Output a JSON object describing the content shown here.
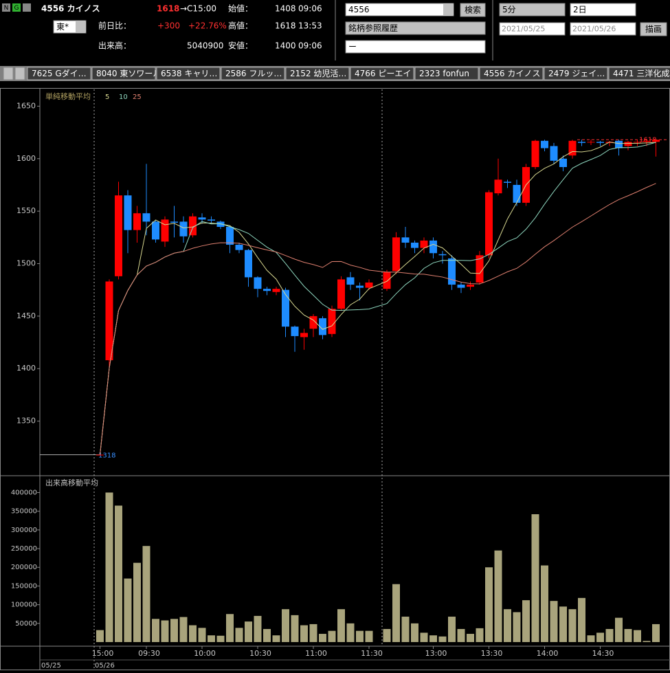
{
  "header": {
    "icons": [
      "N",
      "G"
    ],
    "title": "4556 カイノス",
    "price": "1618",
    "price_time": "→C15:00",
    "market": "東*",
    "change_label": "前日比：",
    "change": "+300",
    "change_pct": "+22.76%",
    "volume_label": "出来高：",
    "volume": "5040900",
    "open_label": "始値：",
    "open": "1408",
    "open_time": "09:06",
    "high_label": "高値：",
    "high": "1618",
    "high_time": "13:53",
    "low_label": "安値：",
    "low": "1400",
    "low_time": "09:06"
  },
  "search": {
    "code": "4556",
    "button": "検索",
    "history": "銘柄参照履歴",
    "extra": "ー"
  },
  "period": {
    "interval": "5分",
    "span": "2日",
    "from": "2021/05/25",
    "to": "2021/05/26",
    "button": "描画"
  },
  "tabs": [
    "7625 Gダイ…",
    "8040 東ソワール",
    "6538 キャリ…",
    "2586 フルッ…",
    "2152 幼児活…",
    "4766 ピーエイ",
    "2323 fonfun",
    "4556 カイノス",
    "2479 ジェイ…",
    "4471 三洋化成"
  ],
  "chart_data": {
    "type": "candlestick",
    "categories": [
      "15:00",
      null,
      null,
      null,
      null,
      "09:30",
      null,
      null,
      null,
      null,
      null,
      "10:00",
      null,
      null,
      null,
      null,
      null,
      "10:30",
      null,
      null,
      null,
      null,
      null,
      "11:00",
      null,
      null,
      null,
      null,
      null,
      "11:30",
      null,
      null,
      null,
      null,
      null,
      "13:00",
      null,
      null,
      null,
      null,
      null,
      "13:30",
      null,
      null,
      null,
      null,
      null,
      "14:00",
      null,
      null,
      null,
      null,
      null,
      "14:30",
      null,
      null,
      null,
      null,
      null,
      null
    ],
    "dates": [
      "05/25",
      "05/26"
    ],
    "open": [
      1318,
      1408,
      1488,
      1565,
      1532,
      1548,
      1540,
      1521,
      1540,
      1540,
      1527,
      1544,
      1542,
      1540,
      1535,
      1518,
      1513,
      1487,
      1476,
      1473,
      1475,
      1440,
      1430,
      1438,
      1448,
      1433,
      1457,
      1487,
      1479,
      1477,
      1476,
      1493,
      1525,
      1520,
      1515,
      1522,
      1509,
      1505,
      1480,
      1478,
      1482,
      1508,
      1567,
      1578,
      1575,
      1558,
      1592,
      1617,
      1612,
      1600,
      1603,
      1616,
      1616,
      1616,
      1615,
      1617,
      1612,
      1616,
      1616,
      1616
    ],
    "high": [
      1318,
      1485,
      1578,
      1570,
      1555,
      1595,
      1541,
      1545,
      1555,
      1545,
      1548,
      1548,
      1545,
      1541,
      1536,
      1520,
      1514,
      1488,
      1478,
      1478,
      1477,
      1441,
      1438,
      1452,
      1450,
      1460,
      1488,
      1492,
      1482,
      1485,
      1494,
      1530,
      1535,
      1522,
      1525,
      1525,
      1512,
      1508,
      1482,
      1483,
      1512,
      1570,
      1600,
      1580,
      1580,
      1595,
      1618,
      1618,
      1615,
      1603,
      1618,
      1618,
      1618,
      1617,
      1617,
      1618,
      1617,
      1618,
      1618,
      1618
    ],
    "low": [
      1318,
      1400,
      1485,
      1510,
      1520,
      1527,
      1520,
      1516,
      1525,
      1520,
      1525,
      1538,
      1538,
      1533,
      1510,
      1510,
      1478,
      1468,
      1470,
      1470,
      1430,
      1416,
      1418,
      1430,
      1428,
      1430,
      1455,
      1475,
      1465,
      1475,
      1474,
      1490,
      1515,
      1510,
      1510,
      1505,
      1500,
      1475,
      1472,
      1475,
      1480,
      1505,
      1565,
      1572,
      1555,
      1555,
      1590,
      1607,
      1595,
      1588,
      1600,
      1612,
      1613,
      1612,
      1612,
      1603,
      1608,
      1612,
      1612,
      1602
    ],
    "close": [
      1318,
      1483,
      1565,
      1532,
      1548,
      1540,
      1523,
      1542,
      1539,
      1526,
      1545,
      1542,
      1541,
      1535,
      1518,
      1513,
      1487,
      1476,
      1474,
      1476,
      1440,
      1431,
      1434,
      1450,
      1432,
      1457,
      1485,
      1480,
      1477,
      1482,
      1492,
      1525,
      1520,
      1515,
      1522,
      1510,
      1508,
      1480,
      1477,
      1480,
      1508,
      1568,
      1580,
      1577,
      1558,
      1592,
      1617,
      1610,
      1598,
      1592,
      1617,
      1615,
      1616,
      1615,
      1616,
      1610,
      1616,
      1616,
      1617,
      1618
    ],
    "up_color": "#ff0000",
    "down_color": "#1e8cff",
    "ylim": [
      1298,
      1666
    ],
    "yticks": [
      1350,
      1400,
      1450,
      1500,
      1550,
      1600,
      1650
    ],
    "ma_title": "単純移動平均",
    "ma_periods": [
      5,
      10,
      25
    ],
    "ma_colors": [
      "#d8d890",
      "#8fd8c0",
      "#e08070"
    ],
    "prev_close": 1318,
    "last_price": 1618,
    "volume": {
      "title": "出来高移動平均",
      "color": "#a9a47c",
      "values": [
        32000,
        400000,
        365000,
        170000,
        212000,
        257000,
        62000,
        58000,
        62000,
        67000,
        45000,
        38000,
        18000,
        17000,
        75000,
        38000,
        55000,
        70000,
        35000,
        18000,
        88000,
        72000,
        45000,
        48000,
        22000,
        30000,
        88000,
        50000,
        30000,
        30000,
        35000,
        155000,
        68000,
        50000,
        25000,
        18000,
        15000,
        68000,
        35000,
        22000,
        37000,
        200000,
        245000,
        88000,
        80000,
        112000,
        342000,
        205000,
        110000,
        95000,
        88000,
        118000,
        18000,
        25000,
        35000,
        65000,
        35000,
        32000,
        3000,
        48000
      ],
      "ylim": [
        -11000,
        445000
      ],
      "yticks": [
        50000,
        100000,
        150000,
        200000,
        250000,
        300000,
        350000,
        400000
      ]
    }
  }
}
